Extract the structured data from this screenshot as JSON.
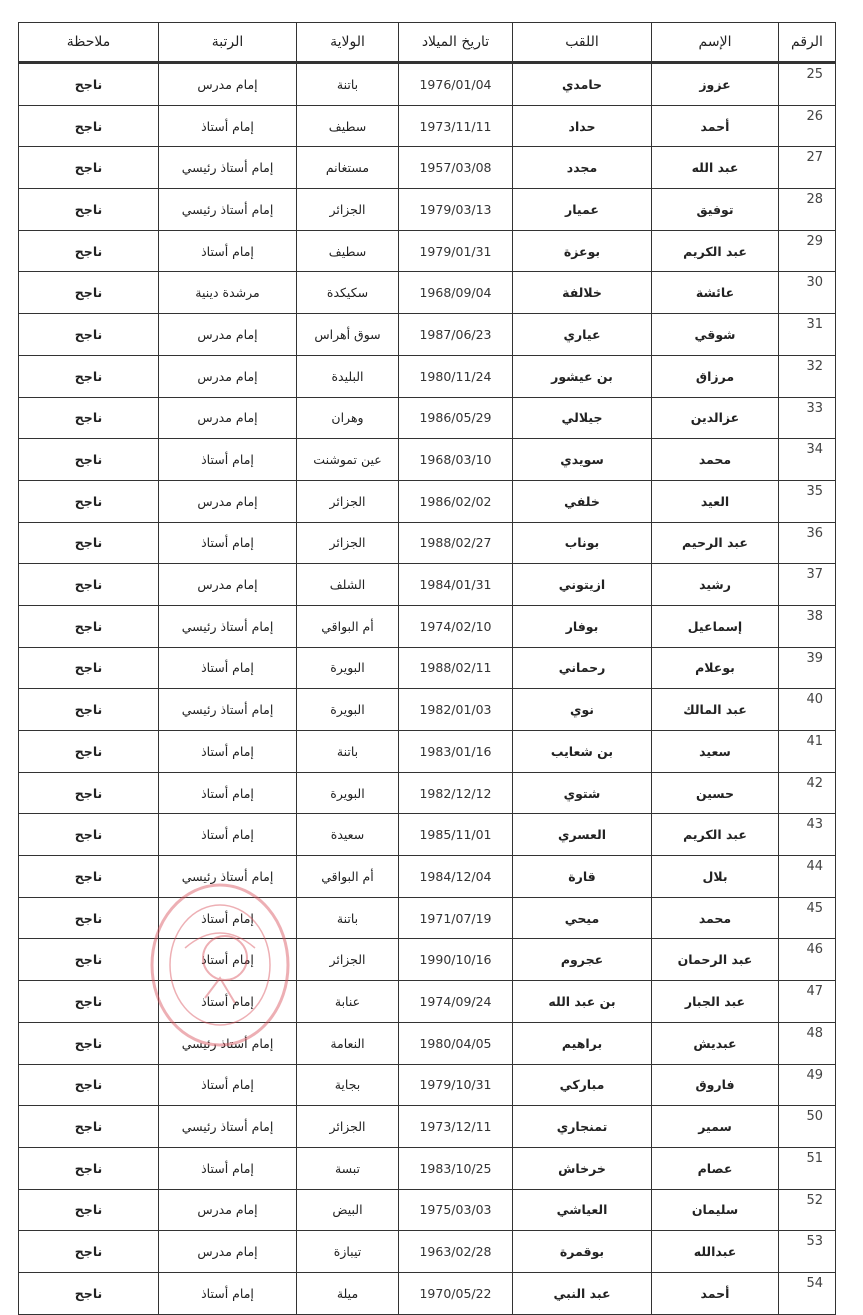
{
  "headers": {
    "number": "الرقم",
    "first_name": "الإسم",
    "last_name": "اللقب",
    "birth_date": "تاريخ الميلاد",
    "province": "الولاية",
    "rank": "الرتبة",
    "note": "ملاحظة"
  },
  "rows": [
    {
      "number": "25",
      "first_name": "عزوز",
      "last_name": "حامدي",
      "birth_date": "1976/01/04",
      "province": "باتنة",
      "rank": "إمام مدرس",
      "note": "ناجح"
    },
    {
      "number": "26",
      "first_name": "أحمد",
      "last_name": "حداد",
      "birth_date": "1973/11/11",
      "province": "سطيف",
      "rank": "إمام أستاذ",
      "note": "ناجح"
    },
    {
      "number": "27",
      "first_name": "عبد الله",
      "last_name": "مجدد",
      "birth_date": "1957/03/08",
      "province": "مستغانم",
      "rank": "إمام أستاذ رئيسي",
      "note": "ناجح"
    },
    {
      "number": "28",
      "first_name": "توفيق",
      "last_name": "عميار",
      "birth_date": "1979/03/13",
      "province": "الجزائر",
      "rank": "إمام أستاذ رئيسي",
      "note": "ناجح"
    },
    {
      "number": "29",
      "first_name": "عبد الكريم",
      "last_name": "بوعزة",
      "birth_date": "1979/01/31",
      "province": "سطيف",
      "rank": "إمام أستاذ",
      "note": "ناجح"
    },
    {
      "number": "30",
      "first_name": "عائشة",
      "last_name": "خلالفة",
      "birth_date": "1968/09/04",
      "province": "سكيكدة",
      "rank": "مرشدة دينية",
      "note": "ناجح"
    },
    {
      "number": "31",
      "first_name": "شوقي",
      "last_name": "عياري",
      "birth_date": "1987/06/23",
      "province": "سوق أهراس",
      "rank": "إمام مدرس",
      "note": "ناجح"
    },
    {
      "number": "32",
      "first_name": "مرزاق",
      "last_name": "بن عيشور",
      "birth_date": "1980/11/24",
      "province": "البليدة",
      "rank": "إمام مدرس",
      "note": "ناجح"
    },
    {
      "number": "33",
      "first_name": "عزالدين",
      "last_name": "جيلالي",
      "birth_date": "1986/05/29",
      "province": "وهران",
      "rank": "إمام مدرس",
      "note": "ناجح"
    },
    {
      "number": "34",
      "first_name": "محمد",
      "last_name": "سويدي",
      "birth_date": "1968/03/10",
      "province": "عين تموشنت",
      "rank": "إمام أستاذ",
      "note": "ناجح"
    },
    {
      "number": "35",
      "first_name": "العيد",
      "last_name": "خلفي",
      "birth_date": "1986/02/02",
      "province": "الجزائر",
      "rank": "إمام مدرس",
      "note": "ناجح"
    },
    {
      "number": "36",
      "first_name": "عبد الرحيم",
      "last_name": "بوناب",
      "birth_date": "1988/02/27",
      "province": "الجزائر",
      "rank": "إمام أستاذ",
      "note": "ناجح"
    },
    {
      "number": "37",
      "first_name": "رشيد",
      "last_name": "ازيتوني",
      "birth_date": "1984/01/31",
      "province": "الشلف",
      "rank": "إمام مدرس",
      "note": "ناجح"
    },
    {
      "number": "38",
      "first_name": "إسماعيل",
      "last_name": "بوفار",
      "birth_date": "1974/02/10",
      "province": "أم البواقي",
      "rank": "إمام أستاذ رئيسي",
      "note": "ناجح"
    },
    {
      "number": "39",
      "first_name": "بوعلام",
      "last_name": "رحماني",
      "birth_date": "1988/02/11",
      "province": "البويرة",
      "rank": "إمام أستاذ",
      "note": "ناجح"
    },
    {
      "number": "40",
      "first_name": "عبد المالك",
      "last_name": "نوي",
      "birth_date": "1982/01/03",
      "province": "البويرة",
      "rank": "إمام أستاذ رئيسي",
      "note": "ناجح"
    },
    {
      "number": "41",
      "first_name": "سعيد",
      "last_name": "بن شعايب",
      "birth_date": "1983/01/16",
      "province": "باتنة",
      "rank": "إمام أستاذ",
      "note": "ناجح"
    },
    {
      "number": "42",
      "first_name": "حسين",
      "last_name": "شتوي",
      "birth_date": "1982/12/12",
      "province": "البويرة",
      "rank": "إمام أستاذ",
      "note": "ناجح"
    },
    {
      "number": "43",
      "first_name": "عبد الكريم",
      "last_name": "العسري",
      "birth_date": "1985/11/01",
      "province": "سعيدة",
      "rank": "إمام أستاذ",
      "note": "ناجح"
    },
    {
      "number": "44",
      "first_name": "بلال",
      "last_name": "قارة",
      "birth_date": "1984/12/04",
      "province": "أم البواقي",
      "rank": "إمام أستاذ رئيسي",
      "note": "ناجح"
    },
    {
      "number": "45",
      "first_name": "محمد",
      "last_name": "ميحي",
      "birth_date": "1971/07/19",
      "province": "باتنة",
      "rank": "إمام أستاذ",
      "note": "ناجح"
    },
    {
      "number": "46",
      "first_name": "عبد الرحمان",
      "last_name": "عجروم",
      "birth_date": "1990/10/16",
      "province": "الجزائر",
      "rank": "إمام أستاذ",
      "note": "ناجح"
    },
    {
      "number": "47",
      "first_name": "عبد الجبار",
      "last_name": "بن عبد الله",
      "birth_date": "1974/09/24",
      "province": "عنابة",
      "rank": "إمام أستاذ",
      "note": "ناجح"
    },
    {
      "number": "48",
      "first_name": "عبديش",
      "last_name": "براهيم",
      "birth_date": "1980/04/05",
      "province": "النعامة",
      "rank": "إمام أستاذ رئيسي",
      "note": "ناجح"
    },
    {
      "number": "49",
      "first_name": "فاروق",
      "last_name": "مباركي",
      "birth_date": "1979/10/31",
      "province": "بجاية",
      "rank": "إمام أستاذ",
      "note": "ناجح"
    },
    {
      "number": "50",
      "first_name": "سمير",
      "last_name": "تمنجاري",
      "birth_date": "1973/12/11",
      "province": "الجزائر",
      "rank": "إمام أستاذ رئيسي",
      "note": "ناجح"
    },
    {
      "number": "51",
      "first_name": "عصام",
      "last_name": "خرخاش",
      "birth_date": "1983/10/25",
      "province": "تبسة",
      "rank": "إمام أستاذ",
      "note": "ناجح"
    },
    {
      "number": "52",
      "first_name": "سليمان",
      "last_name": "العياشي",
      "birth_date": "1975/03/03",
      "province": "البيض",
      "rank": "إمام مدرس",
      "note": "ناجح"
    },
    {
      "number": "53",
      "first_name": "عبدالله",
      "last_name": "بوقمرة",
      "birth_date": "1963/02/28",
      "province": "تيبازة",
      "rank": "إمام مدرس",
      "note": "ناجح"
    },
    {
      "number": "54",
      "first_name": "أحمد",
      "last_name": "عبد النبي",
      "birth_date": "1970/05/22",
      "province": "ميلة",
      "rank": "إمام أستاذ",
      "note": "ناجح"
    }
  ],
  "stamp_color": "#d9505a"
}
